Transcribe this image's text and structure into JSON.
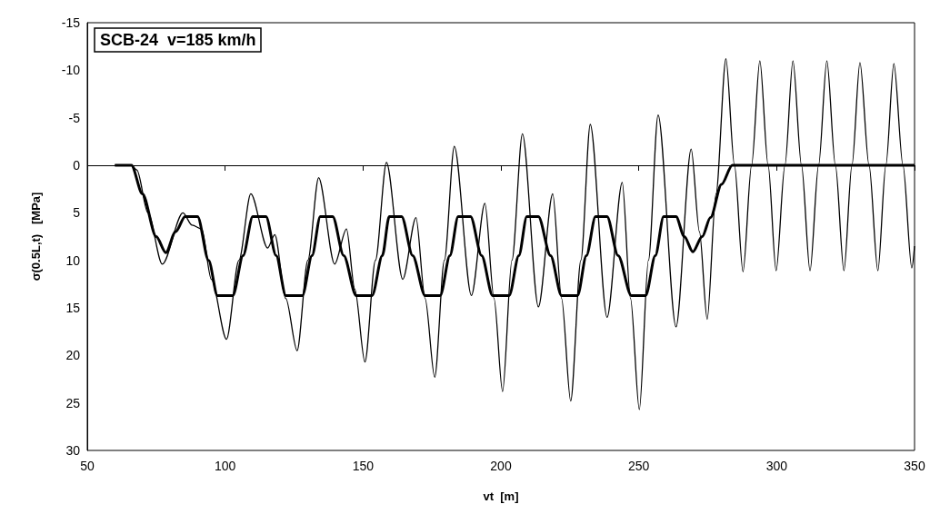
{
  "chart_data": {
    "type": "line",
    "xlabel": "vt  [m]",
    "ylabel": "σ(0.5L,t)   [MPa]",
    "annotations": [
      "SCB-24  v=185 km/h"
    ],
    "xlim": [
      50,
      350
    ],
    "xticks": [
      50,
      100,
      150,
      200,
      250,
      300,
      350
    ],
    "ylim": [
      30,
      -15
    ],
    "yticks": [
      -15,
      -10,
      -5,
      0,
      5,
      10,
      15,
      20,
      25,
      30
    ],
    "grid": false,
    "marker": "none",
    "line_style": "solid",
    "ref_lines": [
      {
        "axis": "y",
        "value": 0,
        "color": "#000000"
      }
    ],
    "series": [
      {
        "color": "#000000",
        "x": [
          60,
          66,
          68,
          72,
          77.2,
          84.7,
          88,
          91.5,
          95,
          100.5,
          105,
          109.3,
          115.4,
          118,
          122,
          126.1,
          130,
          133.9,
          139.7,
          144,
          147,
          150.7,
          154.5,
          158.5,
          164.4,
          169.2,
          172.5,
          176,
          179.5,
          183.1,
          189.3,
          194.2,
          197.5,
          200.6,
          204,
          207.8,
          213.6,
          218.8,
          222,
          225.3,
          229,
          232.4,
          238.5,
          244,
          247,
          250.2,
          253.5,
          257,
          263.5,
          269,
          272,
          274.8,
          278,
          281.6,
          284.7,
          287.8,
          290.9,
          293.9,
          296.9,
          299.8,
          303,
          305.9,
          309,
          312.1,
          315.2,
          318.2,
          321.3,
          324.4,
          327.3,
          330.2,
          333.5,
          336.7,
          339.6,
          342.5,
          345.8,
          349,
          350
        ],
        "values": [
          0,
          0,
          0.5,
          5,
          10.4,
          5.0,
          6.3,
          6.7,
          12,
          18.3,
          10,
          3.0,
          8.7,
          7.3,
          14,
          19.5,
          10,
          1.3,
          10.4,
          6.7,
          13,
          20.7,
          10,
          -0.3,
          12.0,
          5.5,
          14,
          22.3,
          10,
          -2.0,
          13.7,
          4.0,
          14,
          23.8,
          10,
          -3.3,
          14.9,
          3.0,
          14,
          24.8,
          10,
          -4.3,
          16.0,
          1.8,
          14,
          25.7,
          10,
          -5.3,
          17.0,
          -1.7,
          7,
          16.2,
          3,
          -11.2,
          0,
          11.2,
          0,
          -11,
          0,
          11.1,
          0,
          -11,
          0,
          11.1,
          0,
          -11,
          0,
          11.1,
          0,
          -10.8,
          0,
          11.1,
          0,
          -10.7,
          0,
          10.8,
          8.5
        ]
      },
      {
        "color": "#000000",
        "x": [
          60,
          66,
          70,
          75,
          78.5,
          82,
          85.5,
          90,
          94,
          97.2,
          102.8,
          106.5,
          110,
          114.8,
          118.5,
          122,
          128,
          131.5,
          134.5,
          139,
          143,
          147.5,
          153.3,
          157,
          159.5,
          164,
          168,
          172.5,
          178,
          181.5,
          184.5,
          189,
          193,
          197,
          203,
          206.5,
          209.4,
          213.6,
          218,
          222,
          227.8,
          231,
          234.3,
          238.5,
          242.5,
          247.3,
          252.5,
          256,
          259,
          263.5,
          266.5,
          269.6,
          273,
          276,
          280,
          283.9,
          350
        ],
        "values": [
          0,
          0,
          3,
          7.5,
          9.2,
          7,
          5.4,
          5.4,
          10,
          13.7,
          13.7,
          9.5,
          5.4,
          5.4,
          9.5,
          13.7,
          13.7,
          9.5,
          5.4,
          5.4,
          9.5,
          13.7,
          13.7,
          9.5,
          5.4,
          5.4,
          9.5,
          13.7,
          13.7,
          9.5,
          5.4,
          5.4,
          9.5,
          13.7,
          13.7,
          9.5,
          5.4,
          5.4,
          9.5,
          13.7,
          13.7,
          9.5,
          5.4,
          5.4,
          9.5,
          13.7,
          13.7,
          9.5,
          5.4,
          5.4,
          7.5,
          9.1,
          7.5,
          5.5,
          2,
          0,
          0
        ]
      }
    ]
  }
}
